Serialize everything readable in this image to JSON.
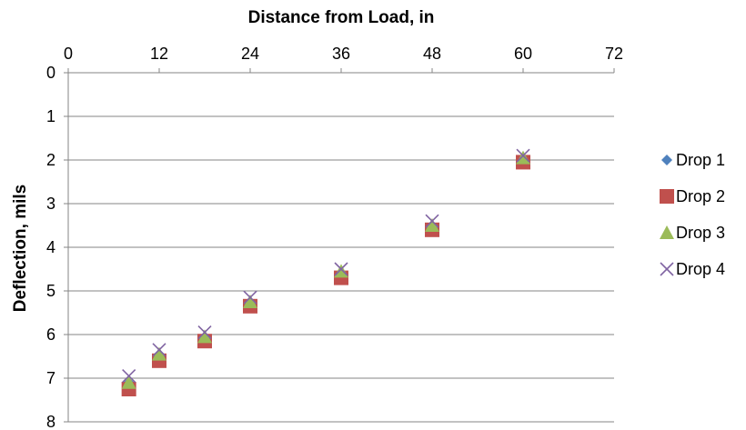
{
  "chart_data": {
    "type": "scatter",
    "xlabel": "Distance from Load, in",
    "ylabel": "Deflection, mils",
    "xlim": [
      0,
      72
    ],
    "ylim": [
      0,
      8
    ],
    "x_ticks": [
      0,
      12,
      24,
      36,
      48,
      60,
      72
    ],
    "y_ticks": [
      0,
      1,
      2,
      3,
      4,
      5,
      6,
      7,
      8
    ],
    "x_axis_position": "top",
    "y_axis_inverted": true,
    "grid": "horizontal",
    "legend_position": "right",
    "x": [
      8,
      12,
      18,
      24,
      36,
      48,
      60
    ],
    "series": [
      {
        "name": "Drop 1",
        "marker": "diamond",
        "color": "#4F81BD",
        "values": [
          7.1,
          6.45,
          6.05,
          5.25,
          4.6,
          3.5,
          1.95
        ]
      },
      {
        "name": "Drop 2",
        "marker": "square",
        "color": "#C0504D",
        "values": [
          7.25,
          6.6,
          6.15,
          5.35,
          4.7,
          3.6,
          2.05
        ]
      },
      {
        "name": "Drop 3",
        "marker": "triangle",
        "color": "#9BBB59",
        "values": [
          7.1,
          6.45,
          6.05,
          5.25,
          4.55,
          3.5,
          1.95
        ]
      },
      {
        "name": "Drop 4",
        "marker": "x",
        "color": "#8064A2",
        "values": [
          6.95,
          6.35,
          5.95,
          5.15,
          4.5,
          3.4,
          1.9
        ]
      }
    ]
  }
}
